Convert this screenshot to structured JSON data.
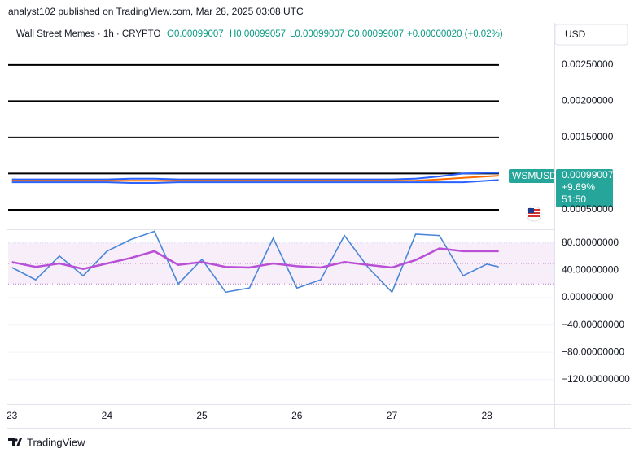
{
  "header": {
    "published": "analyst102 published on TradingView.com, Mar 28, 2025 03:08 UTC",
    "symbol": "Wall Street Memes · 1h · CRYPTO",
    "ohlc": [
      "O0.00099007",
      "H0.00099057",
      "L0.00099007",
      "C0.00099007"
    ],
    "change": "+0.00000020 (+0.02%)",
    "currency": "USD"
  },
  "price_tag": {
    "ticker": "WSMUSD",
    "price": "0.00099007",
    "change": "+9.69%",
    "countdown": "51:50"
  },
  "branding": "TradingView",
  "chart_data": [
    {
      "type": "line",
      "x": [
        23,
        23.25,
        23.5,
        23.75,
        24,
        24.25,
        24.5,
        24.75,
        25,
        25.25,
        25.5,
        25.75,
        26,
        26.25,
        26.5,
        26.75,
        27,
        27.25,
        27.5,
        27.75,
        28,
        28.125
      ],
      "xlim": [
        22.96,
        28.71
      ],
      "ylim": [
        0.00023,
        0.00306
      ],
      "yticks": [
        {
          "value": 0.0025,
          "label": "0.00250000"
        },
        {
          "value": 0.002,
          "label": "0.00200000"
        },
        {
          "value": 0.0015,
          "label": "0.00150000"
        },
        {
          "value": 0.0005,
          "label": "0.00050000"
        }
      ],
      "levels": [
        0.0025,
        0.002,
        0.0015,
        0.001,
        0.0005
      ],
      "series": [
        {
          "color": "#2962ff",
          "values": [
            0.00092,
            0.00092,
            0.00092,
            0.00092,
            0.00092,
            0.00093,
            0.00093,
            0.00092,
            0.00092,
            0.00092,
            0.00092,
            0.00092,
            0.00092,
            0.00092,
            0.00092,
            0.00092,
            0.00092,
            0.00093,
            0.00096,
            0.001,
            0.00101,
            0.00101
          ]
        },
        {
          "color": "#ff6d00",
          "values": [
            0.0009,
            0.0009,
            0.0009,
            0.0009,
            0.0009,
            0.0009,
            0.0009,
            0.0009,
            0.0009,
            0.0009,
            0.0009,
            0.0009,
            0.0009,
            0.0009,
            0.0009,
            0.0009,
            0.0009,
            0.0009,
            0.00092,
            0.00094,
            0.00096,
            0.00097
          ]
        },
        {
          "color": "#2962ff",
          "values": [
            0.00088,
            0.00088,
            0.00088,
            0.00088,
            0.00088,
            0.00087,
            0.00087,
            0.00088,
            0.00088,
            0.00088,
            0.00088,
            0.00088,
            0.00088,
            0.00088,
            0.00088,
            0.00088,
            0.00088,
            0.00088,
            0.00088,
            0.00088,
            0.0009,
            0.00091
          ]
        }
      ]
    },
    {
      "type": "line",
      "x": [
        23,
        23.25,
        23.5,
        23.75,
        24,
        24.25,
        24.5,
        24.75,
        25,
        25.25,
        25.5,
        25.75,
        26,
        26.25,
        26.5,
        26.75,
        27,
        27.25,
        27.5,
        27.75,
        28,
        28.125
      ],
      "xlim": [
        22.96,
        28.71
      ],
      "xticks": [
        23,
        24,
        25,
        26,
        27,
        28
      ],
      "ylim": [
        -156,
        100
      ],
      "yticks": [
        {
          "value": 80,
          "label": "80.00000000"
        },
        {
          "value": 40,
          "label": "40.00000000"
        },
        {
          "value": 0,
          "label": "0.00000000"
        },
        {
          "value": -40,
          "label": "−40.00000000"
        },
        {
          "value": -80,
          "label": "−80.00000000"
        },
        {
          "value": -120,
          "label": "−120.00000000"
        }
      ],
      "band": [
        20,
        50,
        80
      ],
      "series": [
        {
          "color": "#4a86d8",
          "values": [
            44,
            26,
            61,
            32,
            68,
            85,
            97,
            20,
            56,
            8,
            14,
            87,
            14,
            26,
            91,
            44,
            8,
            93,
            91,
            32,
            49,
            45
          ]
        },
        {
          "color": "#b84fd6",
          "values": [
            52,
            45,
            50,
            42,
            50,
            58,
            68,
            48,
            52,
            45,
            44,
            50,
            46,
            44,
            52,
            48,
            44,
            55,
            72,
            68,
            68,
            68
          ]
        }
      ]
    }
  ]
}
